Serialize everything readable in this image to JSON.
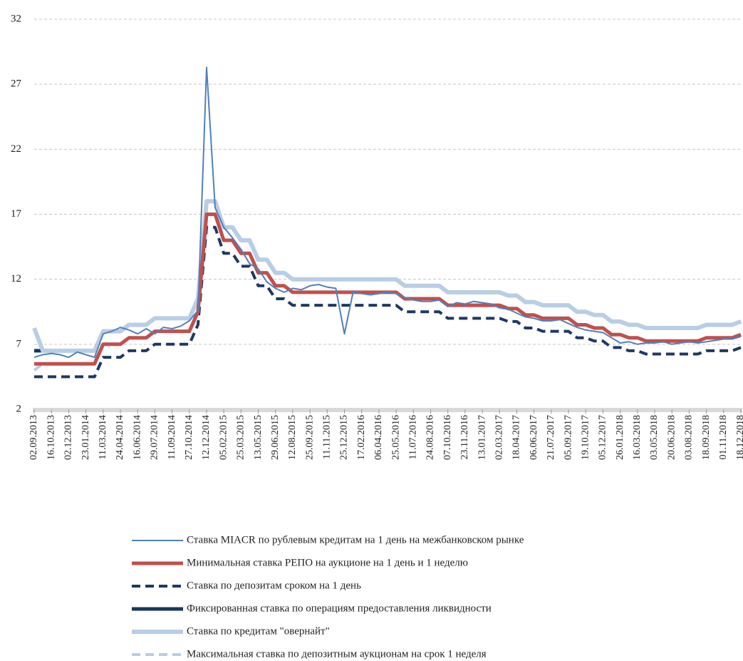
{
  "chart_data": {
    "type": "line",
    "categories": [
      "02.09.2013",
      null,
      "16.10.2013",
      null,
      "02.12.2013",
      null,
      "23.01.2014",
      null,
      "11.03.2014",
      null,
      "24.04.2014",
      null,
      "16.06.2014",
      null,
      "29.07.2014",
      null,
      "11.09.2014",
      null,
      "27.10.2014",
      null,
      "12.12.2014",
      null,
      "05.02.2015",
      null,
      "25.03.2015",
      null,
      "13.05.2015",
      null,
      "29.06.2015",
      null,
      "12.08.2015",
      null,
      "25.09.2015",
      null,
      "11.11.2015",
      null,
      "25.12.2015",
      null,
      "17.02.2016",
      null,
      "06.04.2016",
      null,
      "25.05.2016",
      null,
      "11.07.2016",
      null,
      "24.08.2016",
      null,
      "07.10.2016",
      null,
      "23.11.2016",
      null,
      "13.01.2017",
      null,
      "02.03.2017",
      null,
      "18.04.2017",
      null,
      "06.06.2017",
      null,
      "21.07.2017",
      null,
      "05.09.2017",
      null,
      "19.10.2017",
      null,
      "05.12.2017",
      null,
      "26.01.2018",
      null,
      "16.03.2018",
      null,
      "03.05.2018",
      null,
      "20.06.2018",
      null,
      "03.08.2018",
      null,
      "18.09.2018",
      null,
      "01.11.2018",
      null,
      "18.12.2018"
    ],
    "series": [
      {
        "name": "Ставка MIACR по рублевым кредитам на 1 день на межбанковском рынке",
        "color": "#4f81bd",
        "width": 2,
        "dash": false,
        "values": [
          6.0,
          6.2,
          6.3,
          6.2,
          6.0,
          6.4,
          6.2,
          6.0,
          7.8,
          8.0,
          8.3,
          8.1,
          7.8,
          8.2,
          7.8,
          8.3,
          8.2,
          8.4,
          8.8,
          9.6,
          28.3,
          17.5,
          16.0,
          15.2,
          14.3,
          13.2,
          12.8,
          11.8,
          11.3,
          11.0,
          11.3,
          11.2,
          11.5,
          11.6,
          11.4,
          11.3,
          7.8,
          11.0,
          10.9,
          10.8,
          10.9,
          11.0,
          10.9,
          10.6,
          10.4,
          10.3,
          10.3,
          10.4,
          9.9,
          10.2,
          10.1,
          10.3,
          10.2,
          10.1,
          9.8,
          9.7,
          9.4,
          9.1,
          9.0,
          8.8,
          8.8,
          8.9,
          8.6,
          8.3,
          8.1,
          8.0,
          7.9,
          7.5,
          7.1,
          7.2,
          7.0,
          7.1,
          7.1,
          7.2,
          7.0,
          7.1,
          7.2,
          7.1,
          7.2,
          7.3,
          7.4,
          7.4,
          7.6
        ]
      },
      {
        "name": "Минимальная ставка РЕПО на аукционе на 1 день и 1 неделю",
        "color": "#c0504d",
        "width": 5,
        "dash": false,
        "values": [
          5.5,
          5.5,
          5.5,
          5.5,
          5.5,
          5.5,
          5.5,
          5.5,
          7,
          7,
          7,
          7.5,
          7.5,
          7.5,
          8,
          8,
          8,
          8,
          8,
          9.5,
          17,
          17,
          15,
          15,
          14,
          14,
          12.5,
          12.5,
          11.5,
          11.5,
          11,
          11,
          11,
          11,
          11,
          11,
          11,
          11,
          11,
          11,
          11,
          11,
          11,
          10.5,
          10.5,
          10.5,
          10.5,
          10.5,
          10,
          10,
          10,
          10,
          10,
          10,
          10,
          9.75,
          9.75,
          9.25,
          9.25,
          9,
          9,
          9,
          9,
          8.5,
          8.5,
          8.25,
          8.25,
          7.75,
          7.75,
          7.5,
          7.5,
          7.25,
          7.25,
          7.25,
          7.25,
          7.25,
          7.25,
          7.25,
          7.5,
          7.5,
          7.5,
          7.5,
          7.75
        ]
      },
      {
        "name": "Ставка по депозитам сроком на 1 день",
        "color": "#1f3864",
        "width": 4,
        "dash": true,
        "values": [
          4.5,
          4.5,
          4.5,
          4.5,
          4.5,
          4.5,
          4.5,
          4.5,
          6,
          6,
          6,
          6.5,
          6.5,
          6.5,
          7,
          7,
          7,
          7,
          7,
          8.5,
          16,
          16,
          14,
          14,
          13,
          13,
          11.5,
          11.5,
          10.5,
          10.5,
          10,
          10,
          10,
          10,
          10,
          10,
          10,
          10,
          10,
          10,
          10,
          10,
          10,
          9.5,
          9.5,
          9.5,
          9.5,
          9.5,
          9,
          9,
          9,
          9,
          9,
          9,
          9,
          8.75,
          8.75,
          8.25,
          8.25,
          8,
          8,
          8,
          8,
          7.5,
          7.5,
          7.25,
          7.25,
          6.75,
          6.75,
          6.5,
          6.5,
          6.25,
          6.25,
          6.25,
          6.25,
          6.25,
          6.25,
          6.25,
          6.5,
          6.5,
          6.5,
          6.5,
          6.75
        ]
      },
      {
        "name": "Фиксированная ставка по операциям предоставления ликвидности",
        "color": "#17375e",
        "width": 5,
        "dash": false,
        "values": [
          6.5,
          6.5,
          6.5,
          6.5,
          6.5,
          6.5,
          6.5,
          6.5,
          8,
          8,
          8,
          8.5,
          8.5,
          8.5,
          9,
          9,
          9,
          9,
          9,
          10.5,
          18,
          18,
          16,
          16,
          15,
          15,
          13.5,
          13.5,
          12.5,
          12.5,
          12,
          12,
          12,
          12,
          12,
          12,
          12,
          12,
          12,
          12,
          12,
          12,
          12,
          11.5,
          11.5,
          11.5,
          11.5,
          11.5,
          11,
          11,
          11,
          11,
          11,
          11,
          11,
          10.75,
          10.75,
          10.25,
          10.25,
          10,
          10,
          10,
          10,
          9.5,
          9.5,
          9.25,
          9.25,
          8.75,
          8.75,
          8.5,
          8.5,
          8.25,
          8.25,
          8.25,
          8.25,
          8.25,
          8.25,
          8.25,
          8.5,
          8.5,
          8.5,
          8.5,
          8.75
        ]
      },
      {
        "name": "Ставка по кредитам \"овернайт\"",
        "color": "#b9cde5",
        "width": 6,
        "dash": false,
        "values": [
          8.25,
          6.5,
          6.5,
          6.5,
          6.5,
          6.5,
          6.5,
          6.5,
          8,
          8,
          8,
          8.5,
          8.5,
          8.5,
          9,
          9,
          9,
          9,
          9,
          10.5,
          18,
          18,
          16,
          16,
          15,
          15,
          13.5,
          13.5,
          12.5,
          12.5,
          12,
          12,
          12,
          12,
          12,
          12,
          12,
          12,
          12,
          12,
          12,
          12,
          12,
          11.5,
          11.5,
          11.5,
          11.5,
          11.5,
          11,
          11,
          11,
          11,
          11,
          11,
          11,
          10.75,
          10.75,
          10.25,
          10.25,
          10,
          10,
          10,
          10,
          9.5,
          9.5,
          9.25,
          9.25,
          8.75,
          8.75,
          8.5,
          8.5,
          8.25,
          8.25,
          8.25,
          8.25,
          8.25,
          8.25,
          8.25,
          8.5,
          8.5,
          8.5,
          8.5,
          8.75
        ]
      },
      {
        "name": "Максимальная ставка по депозитным аукционам на срок 1 неделя",
        "color": "#b9cde5",
        "width": 4,
        "dash": true,
        "values": [
          5.0,
          5.5,
          5.5,
          5.5,
          5.5,
          5.5,
          5.5,
          5.5,
          7,
          7,
          7,
          7.5,
          7.5,
          7.5,
          8,
          8,
          8,
          8,
          8,
          9.5,
          17,
          17,
          15,
          15,
          14,
          14,
          12.5,
          12.5,
          11.5,
          11.5,
          11,
          11,
          11,
          11,
          11,
          11,
          11,
          11,
          11,
          11,
          11,
          11,
          11,
          10.5,
          10.5,
          10.5,
          10.5,
          10.5,
          10,
          10,
          10,
          10,
          10,
          10,
          10,
          9.75,
          9.75,
          9.25,
          9.25,
          9,
          9,
          9,
          9,
          8.5,
          8.5,
          8.25,
          8.25,
          7.75,
          7.75,
          7.5,
          7.5,
          7.25,
          7.25,
          7.25,
          7.25,
          7.25,
          7.25,
          7.25,
          7.5,
          7.5,
          7.5,
          7.5,
          7.75
        ]
      }
    ],
    "ylim": [
      2,
      32
    ],
    "yticks": [
      2,
      7,
      12,
      17,
      22,
      27,
      32
    ],
    "grid": true,
    "legend": "bottom"
  }
}
